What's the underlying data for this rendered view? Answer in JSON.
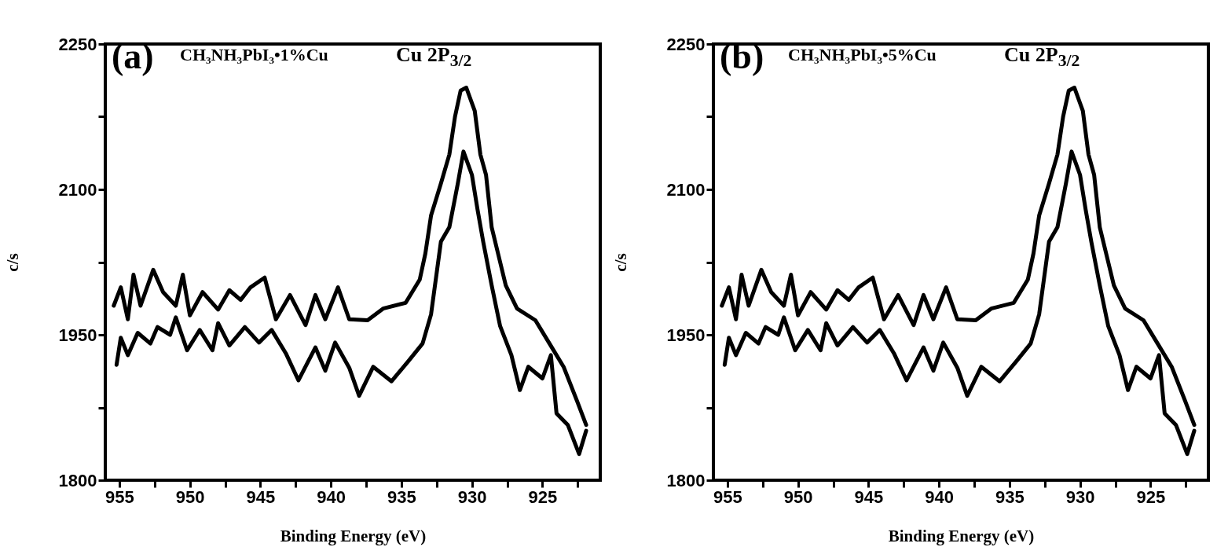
{
  "chart_data": [
    {
      "type": "line",
      "xlabel": "Binding Energy (eV)",
      "ylabel": "c/s",
      "annotations": [
        "(a)",
        "CH₃NH₃PbI₃•1%Cu",
        "Cu 2P$_{3/2}$"
      ],
      "xlim": [
        956,
        920.9
      ],
      "ylim": [
        1800,
        2250
      ],
      "xticks": [
        955,
        {
          "value": 952.5,
          "label": null
        },
        950,
        {
          "value": 947.5,
          "label": null
        },
        945,
        {
          "value": 942.5,
          "label": null
        },
        940,
        {
          "value": 937.5,
          "label": null
        },
        935,
        {
          "value": 932.5,
          "label": null
        },
        930,
        {
          "value": 927.5,
          "label": null
        },
        925,
        {
          "value": 922.5,
          "label": null
        }
      ],
      "yticks": [
        1800,
        {
          "value": 1875,
          "label": null
        },
        1950,
        {
          "value": 2025,
          "label": null
        },
        2100,
        {
          "value": 2175,
          "label": null
        },
        2250
      ],
      "grid": false,
      "legend": false,
      "line_style": "solid",
      "marker": "none",
      "series": [
        {
          "color": "#000000",
          "x": [
            955.4,
            954.9,
            954.4,
            954.0,
            953.5,
            952.6,
            951.9,
            951.0,
            950.5,
            950.0,
            949.1,
            948.0,
            947.2,
            946.4,
            945.7,
            944.7,
            943.9,
            942.9,
            941.8,
            941.1,
            940.4,
            939.5,
            938.7,
            937.4,
            936.3,
            934.7,
            933.7,
            933.3,
            932.9,
            932.2,
            931.6,
            931.2,
            930.8,
            930.4,
            929.8,
            929.4,
            929.0,
            928.6,
            928.0,
            927.6,
            926.8,
            925.5,
            924.5,
            923.5,
            922.5,
            921.9
          ],
          "values": [
            1980,
            1999,
            1966,
            2012,
            1980,
            2017,
            1994,
            1980,
            2012,
            1970,
            1994,
            1976,
            1996,
            1986,
            1999,
            2009,
            1966,
            1991,
            1960,
            1991,
            1966,
            1999,
            1966,
            1965,
            1977,
            1983,
            2007,
            2034,
            2073,
            2106,
            2136,
            2175,
            2202,
            2205,
            2181,
            2136,
            2115,
            2061,
            2025,
            2001,
            1977,
            1965,
            1941,
            1917,
            1880,
            1857
          ]
        },
        {
          "color": "#000000",
          "x": [
            955.2,
            954.9,
            954.4,
            953.7,
            952.8,
            952.3,
            951.4,
            951.0,
            950.2,
            949.3,
            948.4,
            948.0,
            947.2,
            946.1,
            945.1,
            944.2,
            943.2,
            942.3,
            941.1,
            940.4,
            939.7,
            938.7,
            938.0,
            937.0,
            935.7,
            934.5,
            933.5,
            932.9,
            932.2,
            931.6,
            931.0,
            930.6,
            930.0,
            929.6,
            929.2,
            928.6,
            928.0,
            927.2,
            926.6,
            926.0,
            925.0,
            924.4,
            924.0,
            923.2,
            922.4,
            921.9
          ],
          "values": [
            1919,
            1947,
            1929,
            1952,
            1941,
            1958,
            1950,
            1968,
            1934,
            1955,
            1934,
            1962,
            1939,
            1958,
            1942,
            1955,
            1931,
            1903,
            1937,
            1913,
            1942,
            1916,
            1887,
            1917,
            1902,
            1923,
            1941,
            1971,
            2046,
            2061,
            2106,
            2139,
            2115,
            2079,
            2046,
            2001,
            1959,
            1929,
            1893,
            1917,
            1905,
            1929,
            1869,
            1857,
            1827,
            1851
          ]
        }
      ]
    },
    {
      "type": "line",
      "xlabel": "Binding Energy (eV)",
      "ylabel": "c/s",
      "annotations": [
        "(b)",
        "CH₃NH₃PbI₃•5%Cu",
        "Cu 2P$_{3/2}$"
      ],
      "xlim": [
        956,
        920.9
      ],
      "ylim": [
        1800,
        2250
      ],
      "xticks": [
        955,
        {
          "value": 952.5,
          "label": null
        },
        950,
        {
          "value": 947.5,
          "label": null
        },
        945,
        {
          "value": 942.5,
          "label": null
        },
        940,
        {
          "value": 937.5,
          "label": null
        },
        935,
        {
          "value": 932.5,
          "label": null
        },
        930,
        {
          "value": 927.5,
          "label": null
        },
        925,
        {
          "value": 922.5,
          "label": null
        }
      ],
      "yticks": [
        1800,
        {
          "value": 1875,
          "label": null
        },
        1950,
        {
          "value": 2025,
          "label": null
        },
        2100,
        {
          "value": 2175,
          "label": null
        },
        2250
      ],
      "grid": false,
      "legend": false,
      "line_style": "solid",
      "marker": "none",
      "series": [
        {
          "color": "#000000",
          "x": [
            955.4,
            954.9,
            954.4,
            954.0,
            953.5,
            952.6,
            951.9,
            951.0,
            950.5,
            950.0,
            949.1,
            948.0,
            947.2,
            946.4,
            945.7,
            944.7,
            943.9,
            942.9,
            941.8,
            941.1,
            940.4,
            939.5,
            938.7,
            937.4,
            936.3,
            934.7,
            933.7,
            933.3,
            932.9,
            932.2,
            931.6,
            931.2,
            930.8,
            930.4,
            929.8,
            929.4,
            929.0,
            928.6,
            928.0,
            927.6,
            926.8,
            925.5,
            924.5,
            923.5,
            922.5,
            921.9
          ],
          "values": [
            1980,
            1999,
            1966,
            2012,
            1980,
            2017,
            1994,
            1980,
            2012,
            1970,
            1994,
            1976,
            1996,
            1986,
            1999,
            2009,
            1966,
            1991,
            1960,
            1991,
            1966,
            1999,
            1966,
            1965,
            1977,
            1983,
            2007,
            2034,
            2073,
            2106,
            2136,
            2175,
            2202,
            2205,
            2181,
            2136,
            2115,
            2061,
            2025,
            2001,
            1977,
            1965,
            1941,
            1917,
            1880,
            1857
          ]
        },
        {
          "color": "#000000",
          "x": [
            955.2,
            954.9,
            954.4,
            953.7,
            952.8,
            952.3,
            951.4,
            951.0,
            950.2,
            949.3,
            948.4,
            948.0,
            947.2,
            946.1,
            945.1,
            944.2,
            943.2,
            942.3,
            941.1,
            940.4,
            939.7,
            938.7,
            938.0,
            937.0,
            935.7,
            934.5,
            933.5,
            932.9,
            932.2,
            931.6,
            931.0,
            930.6,
            930.0,
            929.6,
            929.2,
            928.6,
            928.0,
            927.2,
            926.6,
            926.0,
            925.0,
            924.4,
            924.0,
            923.2,
            922.4,
            921.9
          ],
          "values": [
            1919,
            1947,
            1929,
            1952,
            1941,
            1958,
            1950,
            1968,
            1934,
            1955,
            1934,
            1962,
            1939,
            1958,
            1942,
            1955,
            1931,
            1903,
            1937,
            1913,
            1942,
            1916,
            1887,
            1917,
            1902,
            1923,
            1941,
            1971,
            2046,
            2061,
            2106,
            2139,
            2115,
            2079,
            2046,
            2001,
            1959,
            1929,
            1893,
            1917,
            1905,
            1929,
            1869,
            1857,
            1827,
            1851
          ]
        }
      ]
    }
  ]
}
